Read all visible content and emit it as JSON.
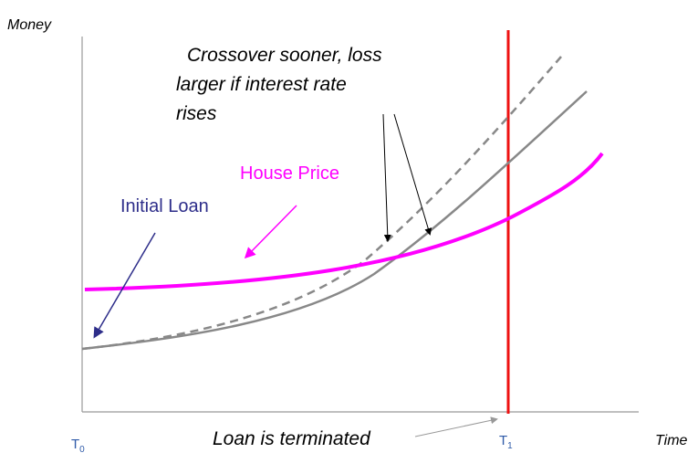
{
  "axes": {
    "y_label": "Money",
    "x_label": "Time",
    "t0": {
      "main": "T",
      "sub": "0"
    },
    "t1": {
      "main": "T",
      "sub": "1"
    }
  },
  "labels": {
    "house_price": "House Price",
    "initial_loan": "Initial Loan",
    "crossover": [
      "Crossover sooner, loss",
      "larger if interest rate",
      "rises"
    ],
    "terminated": "Loan is terminated"
  }
}
